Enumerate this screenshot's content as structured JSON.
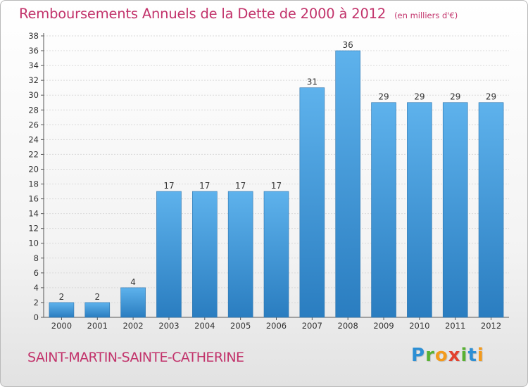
{
  "title": "Remboursements Annuels de la Dette de 2000 à 2012",
  "subtitle": "(en milliers d'€)",
  "commune": "SAINT-MARTIN-SAINTE-CATHERINE",
  "logo": {
    "text": "Proxiti",
    "letters": [
      {
        "ch": "P",
        "color": "#2d8fd4"
      },
      {
        "ch": "r",
        "color": "#58b133"
      },
      {
        "ch": "o",
        "color": "#f39a1c"
      },
      {
        "ch": "x",
        "color": "#e2422f"
      },
      {
        "ch": "i",
        "color": "#58b133"
      },
      {
        "ch": "t",
        "color": "#2d8fd4"
      },
      {
        "ch": "i",
        "color": "#f39a1c"
      }
    ]
  },
  "colors": {
    "title": "#c2336b",
    "bar_top": "#5eb2ec",
    "bar_bottom": "#2a7dc0",
    "bar_stroke": "#2c73ad",
    "grid": "#d9d9d9",
    "axis": "#555555"
  },
  "chart_data": {
    "type": "bar",
    "title": "Remboursements Annuels de la Dette de 2000 à 2012",
    "subtitle": "(en milliers d'€)",
    "categories": [
      "2000",
      "2001",
      "2002",
      "2003",
      "2004",
      "2005",
      "2006",
      "2007",
      "2008",
      "2009",
      "2010",
      "2011",
      "2012"
    ],
    "values": [
      2,
      2,
      4,
      17,
      17,
      17,
      17,
      31,
      36,
      29,
      29,
      29,
      29
    ],
    "ylim": [
      0,
      38
    ],
    "yticks": [
      0,
      2,
      4,
      6,
      8,
      10,
      12,
      14,
      16,
      18,
      20,
      22,
      24,
      26,
      28,
      30,
      32,
      34,
      36,
      38
    ],
    "grid": true,
    "data_labels": true
  }
}
